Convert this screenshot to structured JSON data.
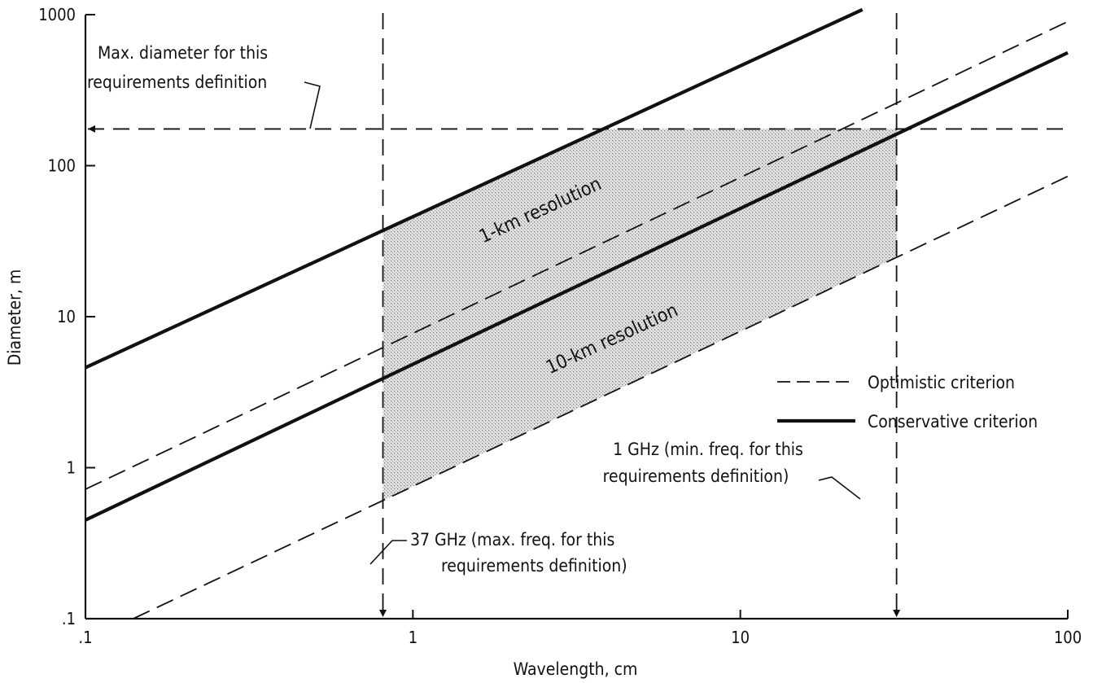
{
  "chart_data": {
    "type": "line",
    "x_scale": "log",
    "y_scale": "log",
    "xlabel": "Wavelength, cm",
    "ylabel": "Diameter, m",
    "xlim": [
      0.1,
      100
    ],
    "ylim": [
      0.1,
      1000
    ],
    "x_ticks": [
      0.1,
      1,
      10,
      100
    ],
    "y_ticks": [
      0.1,
      1,
      10,
      100,
      1000
    ],
    "x_tick_labels": [
      ".1",
      "1",
      "10",
      "100"
    ],
    "y_tick_labels": [
      ".1",
      "1",
      "10",
      "100",
      "1000"
    ],
    "grid": false,
    "series": [
      {
        "resolution": "1-km",
        "criterion": "conservative",
        "style": "solid",
        "x": [
          0.1,
          23.6
        ],
        "y": [
          4.6,
          1080
        ]
      },
      {
        "resolution": "1-km",
        "criterion": "optimistic",
        "style": "dashed",
        "x": [
          0.1,
          100
        ],
        "y": [
          0.72,
          900
        ]
      },
      {
        "resolution": "10-km",
        "criterion": "conservative",
        "style": "solid",
        "x": [
          0.1,
          100
        ],
        "y": [
          0.45,
          560
        ]
      },
      {
        "resolution": "10-km",
        "criterion": "optimistic",
        "style": "dashed",
        "x": [
          0.14,
          100
        ],
        "y": [
          0.1,
          85
        ]
      }
    ],
    "reference_lines": {
      "max_diameter_y": 175,
      "max_freq_wavelength_x": 0.81,
      "min_freq_wavelength_x": 30
    },
    "shaded_region": {
      "x_range": [
        0.81,
        30
      ],
      "upper": "min(1-km conservative, max diameter)",
      "lower": "10-km optimistic"
    },
    "labels": {
      "res_1km": "1-km resolution",
      "res_10km": "10-km resolution"
    },
    "annotations": {
      "max_diameter": [
        "Max. diameter for this",
        "requirements definition"
      ],
      "min_freq": [
        "1 GHz (min. freq. for this",
        "requirements definition)"
      ],
      "max_freq": [
        "37 GHz (max. freq. for this",
        "requirements definition)"
      ]
    },
    "legend": {
      "position": "right",
      "items": [
        {
          "label": "Optimistic criterion",
          "style": "dashed"
        },
        {
          "label": "Conservative criterion",
          "style": "solid"
        }
      ]
    }
  }
}
